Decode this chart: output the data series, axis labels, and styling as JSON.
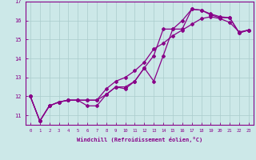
{
  "xlabel": "Windchill (Refroidissement éolien,°C)",
  "background_color": "#cce8e8",
  "line_color": "#880088",
  "x_min": -0.5,
  "x_max": 23.5,
  "y_min": 10.5,
  "y_max": 17.0,
  "line1_x": [
    0,
    1,
    2,
    3,
    4,
    5,
    6,
    7,
    8,
    9,
    10,
    11,
    12,
    13,
    14,
    15,
    16,
    17,
    18,
    19,
    20,
    21,
    22,
    23
  ],
  "line1_y": [
    12.0,
    10.7,
    11.5,
    11.7,
    11.8,
    11.8,
    11.8,
    11.8,
    12.1,
    12.5,
    12.5,
    12.8,
    13.5,
    12.8,
    14.15,
    15.55,
    15.55,
    16.6,
    16.55,
    16.3,
    16.15,
    16.15,
    15.35,
    15.5
  ],
  "line2_x": [
    0,
    1,
    2,
    3,
    4,
    5,
    6,
    7,
    8,
    9,
    10,
    11,
    12,
    13,
    14,
    15,
    16,
    17,
    18,
    19,
    20,
    21,
    22,
    23
  ],
  "line2_y": [
    12.0,
    10.7,
    11.5,
    11.7,
    11.8,
    11.8,
    11.5,
    11.5,
    12.1,
    12.5,
    12.4,
    12.8,
    13.5,
    14.15,
    15.55,
    15.55,
    16.0,
    16.6,
    16.55,
    16.35,
    16.2,
    16.15,
    15.35,
    15.5
  ],
  "line3_x": [
    0,
    1,
    2,
    3,
    4,
    5,
    6,
    7,
    8,
    9,
    10,
    11,
    12,
    13,
    14,
    15,
    16,
    17,
    18,
    19,
    20,
    21,
    22,
    23
  ],
  "line3_y": [
    12.0,
    10.7,
    11.5,
    11.7,
    11.8,
    11.8,
    11.8,
    11.8,
    12.4,
    12.8,
    13.0,
    13.35,
    13.8,
    14.5,
    14.8,
    15.2,
    15.5,
    15.8,
    16.1,
    16.2,
    16.1,
    15.9,
    15.4,
    15.5
  ],
  "yticks": [
    11,
    12,
    13,
    14,
    15,
    16,
    17
  ],
  "xticks": [
    0,
    1,
    2,
    3,
    4,
    5,
    6,
    7,
    8,
    9,
    10,
    11,
    12,
    13,
    14,
    15,
    16,
    17,
    18,
    19,
    20,
    21,
    22,
    23
  ],
  "grid_color": "#aacccc",
  "marker": "D",
  "marker_size": 2.0,
  "line_width": 0.9
}
